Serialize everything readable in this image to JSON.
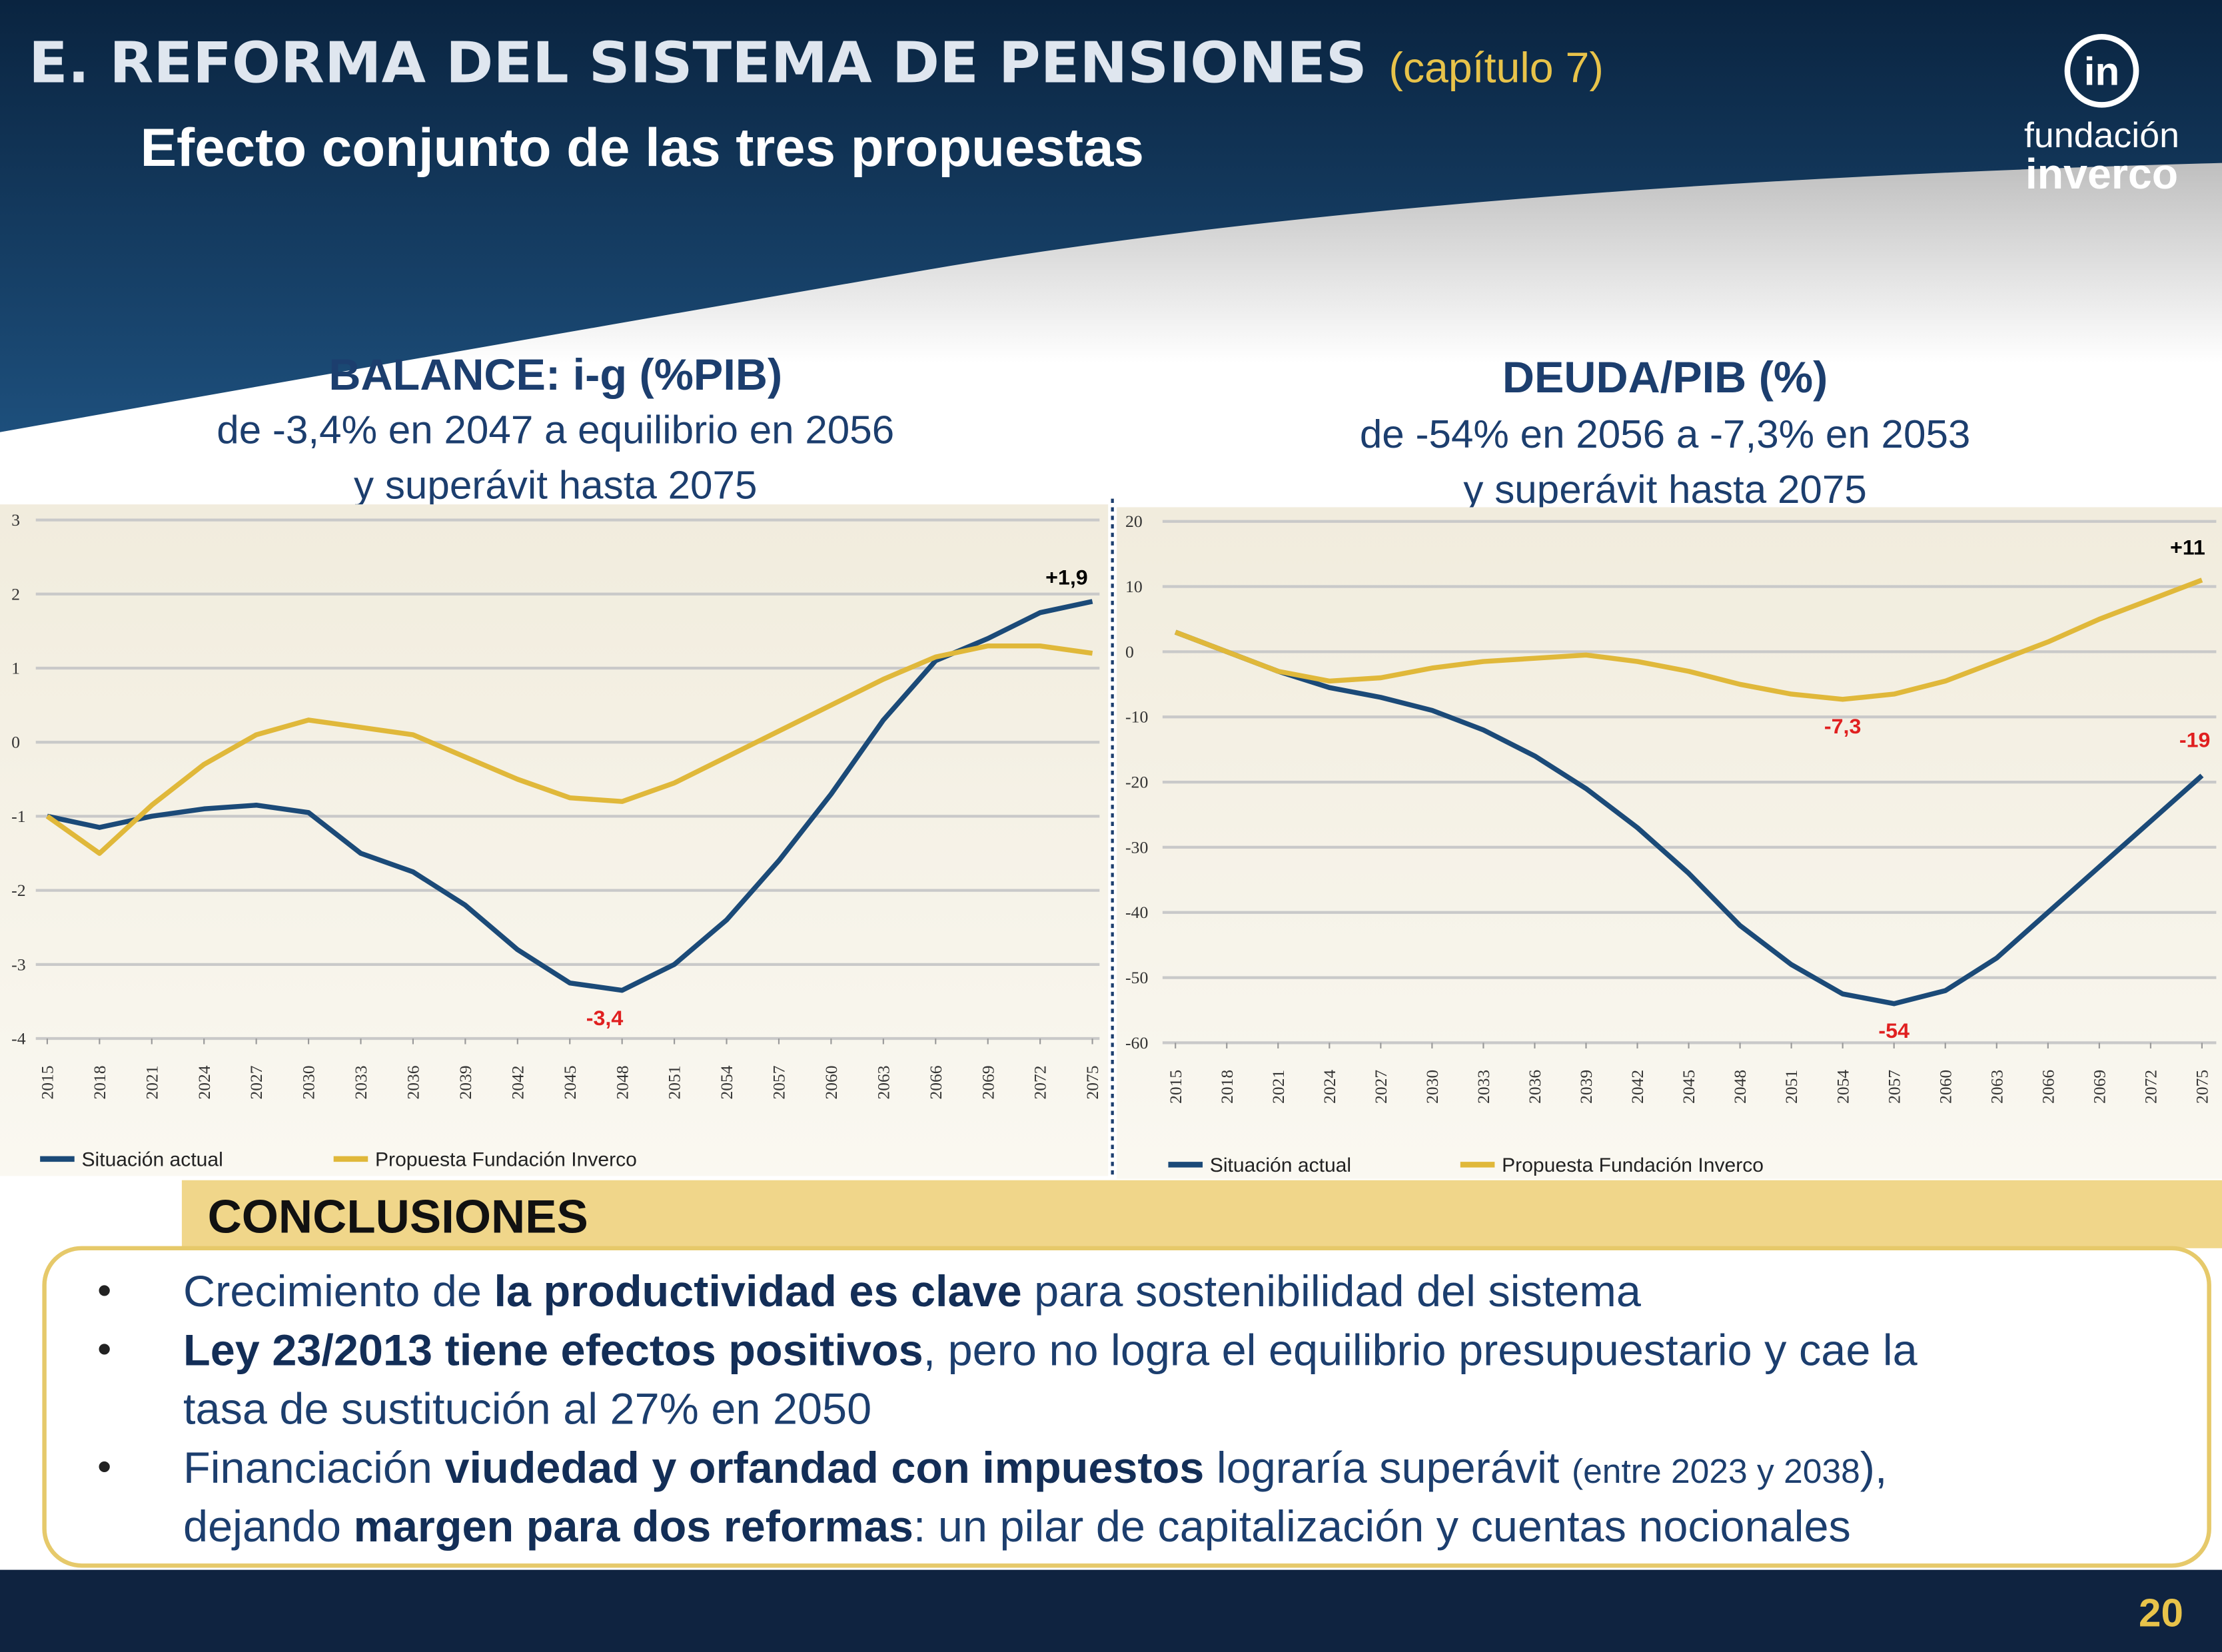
{
  "header": {
    "title": "E. REFORMA DEL SISTEMA DE PENSIONES",
    "chapter": "(capítulo 7)",
    "subtitle": "Efecto conjunto de las tres propuestas"
  },
  "logo": {
    "icon": "in",
    "line1": "fundación",
    "line2": "inverco"
  },
  "chart_data": [
    {
      "type": "line",
      "title": "BALANCE: i-g (%PIB)",
      "subtitle": [
        "de -3,4% en 2047 a equilibrio en 2056",
        "y superávit hasta 2075"
      ],
      "x": [
        2015,
        2018,
        2021,
        2024,
        2027,
        2030,
        2033,
        2036,
        2039,
        2042,
        2045,
        2048,
        2051,
        2054,
        2057,
        2060,
        2063,
        2066,
        2069,
        2072,
        2075
      ],
      "xlim": [
        2015,
        2075
      ],
      "xticks": [
        2015,
        2018,
        2021,
        2024,
        2027,
        2030,
        2033,
        2036,
        2039,
        2042,
        2045,
        2048,
        2051,
        2054,
        2057,
        2060,
        2063,
        2066,
        2069,
        2072,
        2075
      ],
      "ylim": [
        -4,
        3
      ],
      "yticks": [
        -4,
        -3,
        -2,
        -1,
        0,
        1,
        2,
        3
      ],
      "grid": true,
      "series": [
        {
          "name": "Situación actual",
          "color": "#1b4a78",
          "values": [
            -1.0,
            -1.15,
            -1.0,
            -0.9,
            -0.85,
            -0.95,
            -1.5,
            -1.75,
            -2.2,
            -2.8,
            -3.25,
            -3.35,
            -3.0,
            -2.4,
            -1.6,
            -0.7,
            0.3,
            1.1,
            1.4,
            1.75,
            1.9
          ]
        },
        {
          "name": "Propuesta Fundación Inverco",
          "color": "#e0b83a",
          "values": [
            -1.0,
            -1.5,
            -0.85,
            -0.3,
            0.1,
            0.3,
            0.2,
            0.1,
            -0.2,
            -0.5,
            -0.75,
            -0.8,
            -0.55,
            -0.2,
            0.15,
            0.5,
            0.85,
            1.15,
            1.3,
            1.3,
            1.2
          ]
        }
      ],
      "annotations": [
        {
          "text": "+1,9",
          "x": 2075,
          "y": 1.9,
          "color": "#000000"
        },
        {
          "text": "-3,4",
          "x": 2047,
          "y": -3.4,
          "color": "#e02020"
        }
      ]
    },
    {
      "type": "line",
      "title": "DEUDA/PIB (%)",
      "subtitle": [
        "de -54% en 2056 a -7,3% en 2053",
        "y superávit hasta 2075"
      ],
      "x": [
        2015,
        2018,
        2021,
        2024,
        2027,
        2030,
        2033,
        2036,
        2039,
        2042,
        2045,
        2048,
        2051,
        2054,
        2057,
        2060,
        2063,
        2066,
        2069,
        2072,
        2075
      ],
      "xlim": [
        2015,
        2075
      ],
      "xticks": [
        2015,
        2018,
        2021,
        2024,
        2027,
        2030,
        2033,
        2036,
        2039,
        2042,
        2045,
        2048,
        2051,
        2054,
        2057,
        2060,
        2063,
        2066,
        2069,
        2072,
        2075
      ],
      "ylim": [
        -60,
        20
      ],
      "yticks": [
        -60,
        -50,
        -40,
        -30,
        -20,
        -10,
        0,
        10,
        20
      ],
      "grid": true,
      "series": [
        {
          "name": "Situación actual",
          "color": "#1b4a78",
          "values": [
            3,
            0,
            -3,
            -5.5,
            -7,
            -9,
            -12,
            -16,
            -21,
            -27,
            -34,
            -42,
            -48,
            -52.5,
            -54,
            -52,
            -47,
            -40,
            -33,
            -26,
            -19
          ]
        },
        {
          "name": "Propuesta Fundación Inverco",
          "color": "#e0b83a",
          "values": [
            3,
            0,
            -3,
            -4.5,
            -4,
            -2.5,
            -1.5,
            -1,
            -0.5,
            -1.5,
            -3,
            -5,
            -6.5,
            -7.3,
            -6.5,
            -4.5,
            -1.5,
            1.5,
            5,
            8,
            11
          ]
        }
      ],
      "annotations": [
        {
          "text": "+11",
          "x": 2075,
          "y": 11,
          "color": "#000000"
        },
        {
          "text": "-7,3",
          "x": 2054,
          "y": -7.3,
          "color": "#e02020"
        },
        {
          "text": "-54",
          "x": 2057,
          "y": -54,
          "color": "#e02020"
        },
        {
          "text": "-19",
          "x": 2075,
          "y": -19,
          "color": "#e02020"
        }
      ]
    }
  ],
  "conclusions": {
    "title": "CONCLUSIONES",
    "bullets": [
      [
        [
          {
            "text": "Crecimiento de ",
            "style": "normal"
          },
          {
            "text": "la productividad es clave",
            "style": "bold"
          },
          {
            "text": " para sostenibilidad del sistema",
            "style": "normal"
          }
        ]
      ],
      [
        [
          {
            "text": "Ley 23/2013 tiene efectos positivos",
            "style": "bold"
          },
          {
            "text": ", pero no logra el equilibrio presupuestario y cae la",
            "style": "normal"
          }
        ],
        [
          {
            "text": "tasa de sustitución al 27% en 2050",
            "style": "normal"
          }
        ]
      ],
      [
        [
          {
            "text": "Financiación ",
            "style": "normal"
          },
          {
            "text": "viudedad y orfandad con impuestos",
            "style": "bold"
          },
          {
            "text": " lograría superávit ",
            "style": "normal"
          },
          {
            "text": "(entre 2023 y 2038",
            "style": "small"
          },
          {
            "text": "),",
            "style": "normal"
          }
        ],
        [
          {
            "text": "dejando ",
            "style": "normal"
          },
          {
            "text": "margen para dos reformas",
            "style": "bold"
          },
          {
            "text": ": un pilar de capitalización y cuentas nocionales",
            "style": "normal"
          }
        ]
      ]
    ]
  },
  "page_number": "20"
}
